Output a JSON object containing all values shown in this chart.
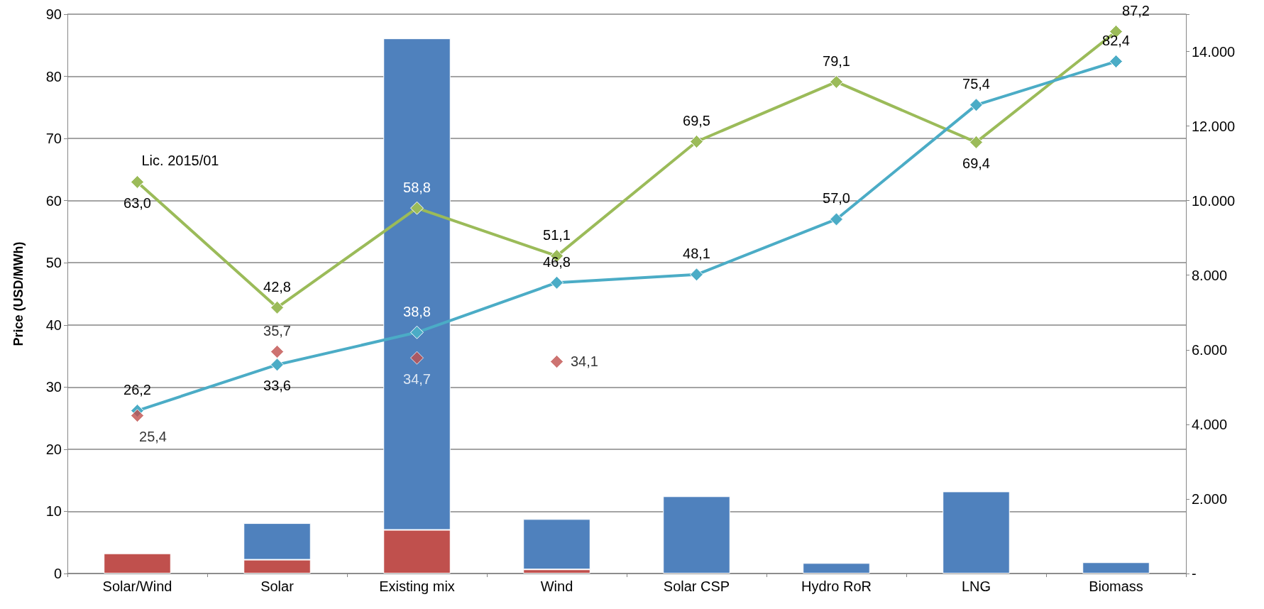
{
  "chart_data": {
    "type": "bar",
    "stacked": true,
    "ylabel": "Price (USD/MWh)",
    "categories": [
      "Solar/Wind",
      "Solar",
      "Existing mix",
      "Wind",
      "Solar CSP",
      "Hydro RoR",
      "LNG",
      "Biomass"
    ],
    "series": [
      {
        "axis": "y2",
        "color": "#c0504d",
        "values": [
          540,
          370,
          1170,
          110,
          null,
          null,
          null,
          null
        ]
      },
      {
        "axis": "y2",
        "color": "#4f81bd",
        "values": [
          null,
          980,
          13180,
          1350,
          2070,
          280,
          2200,
          300
        ]
      },
      {
        "type": "line",
        "color": "#9bbb59",
        "marker": "diamond",
        "values": [
          63.0,
          42.8,
          58.8,
          51.1,
          69.5,
          79.1,
          69.4,
          87.2
        ],
        "value_labels": [
          "63,0",
          "42,8",
          "58,8",
          "51,1",
          "69,5",
          "79,1",
          "69,4",
          "87,2"
        ]
      },
      {
        "type": "line",
        "color": "#4bacc6",
        "marker": "diamond",
        "values": [
          26.2,
          33.6,
          38.8,
          46.8,
          48.1,
          57.0,
          75.4,
          82.4
        ],
        "value_labels": [
          "26,2",
          "33,6",
          "38,8",
          "46,8",
          "48,1",
          "57,0",
          "75,4",
          "82,4"
        ]
      },
      {
        "type": "scatter",
        "color": "#c0504d",
        "marker": "diamond",
        "values": [
          25.4,
          35.7,
          34.7,
          34.1,
          null,
          null,
          null,
          null
        ],
        "value_labels": [
          "25,4",
          "35,7",
          "34,7",
          "34,1",
          null,
          null,
          null,
          null
        ]
      }
    ],
    "ylim": [
      0,
      90
    ],
    "yticks": [
      0,
      10,
      20,
      30,
      40,
      50,
      60,
      70,
      80,
      90
    ],
    "y2lim": [
      0,
      15000
    ],
    "y2ticks": [
      {
        "value": 0,
        "label": "-"
      },
      {
        "value": 2000,
        "label": "2.000"
      },
      {
        "value": 4000,
        "label": "4.000"
      },
      {
        "value": 6000,
        "label": "6.000"
      },
      {
        "value": 8000,
        "label": "8.000"
      },
      {
        "value": 10000,
        "label": "10.000"
      },
      {
        "value": 12000,
        "label": "12.000"
      },
      {
        "value": 14000,
        "label": "14.000"
      },
      {
        "value": 15000,
        "label": null
      }
    ],
    "grid": "y",
    "annotations": [
      {
        "text": "Lic. 2015/01",
        "x": "Solar/Wind",
        "y": 63.0
      }
    ]
  }
}
